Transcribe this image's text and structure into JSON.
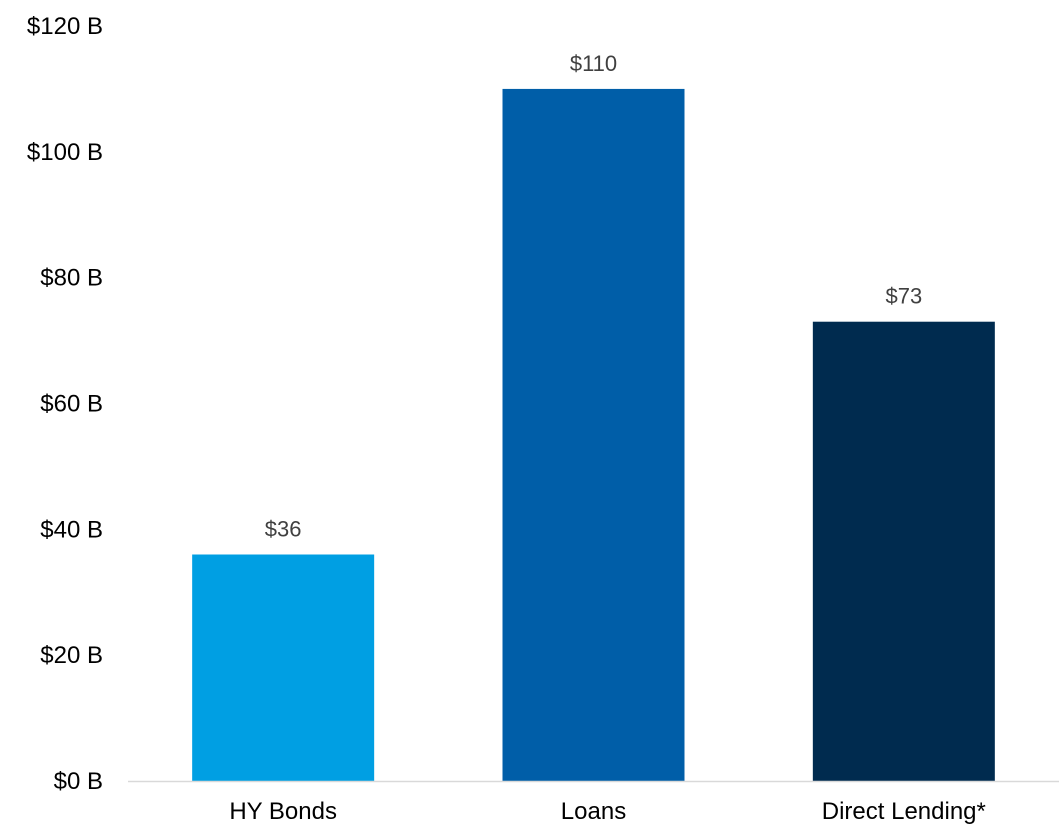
{
  "chart_data": {
    "type": "bar",
    "title": "",
    "xlabel": "",
    "ylabel": "",
    "categories": [
      "HY Bonds",
      "Loans",
      "Direct Lending*"
    ],
    "values": [
      36,
      110,
      73
    ],
    "data_labels": [
      "$36",
      "$110",
      "$73"
    ],
    "bar_colors": [
      "#009fe3",
      "#005ea8",
      "#002b4f"
    ],
    "ylim": [
      0,
      120
    ],
    "yticks": [
      0,
      20,
      40,
      60,
      80,
      100,
      120
    ],
    "ytick_labels": [
      "$0 B",
      "$20 B",
      "$40 B",
      "$60 B",
      "$80 B",
      "$100 B",
      "$120 B"
    ],
    "grid": false,
    "legend": "none",
    "axis_color": "#d9d9d9"
  }
}
